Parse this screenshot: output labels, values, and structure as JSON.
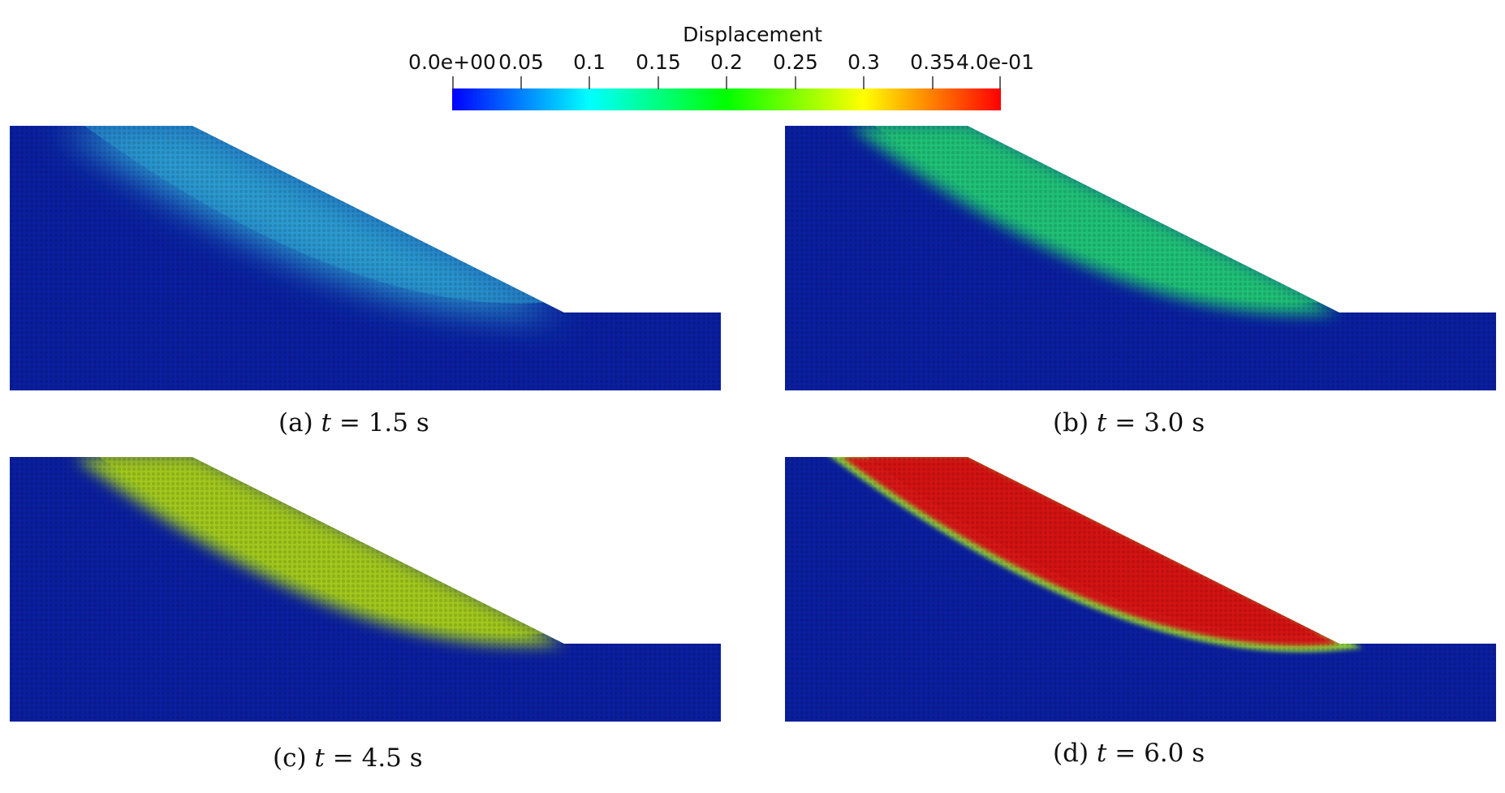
{
  "colorbar": {
    "title": "Displacement",
    "ticks": [
      "0.0e+00",
      "0.05",
      "0.1",
      "0.15",
      "0.2",
      "0.25",
      "0.3",
      "0.35",
      "4.0e-01"
    ],
    "range": [
      0.0,
      0.4
    ],
    "colormap": [
      "#0000ff",
      "#00ffff",
      "#00ff00",
      "#ffff00",
      "#ff0000"
    ]
  },
  "panels": [
    {
      "label": "(a)",
      "t_symbol": "t",
      "equals": "=",
      "time": "1.5 s",
      "slide_color": "#2a9ad0",
      "core_color": "#2b9fd2"
    },
    {
      "label": "(b)",
      "t_symbol": "t",
      "equals": "=",
      "time": "3.0 s",
      "slide_color": "#1fbf78",
      "core_color": "#22c277"
    },
    {
      "label": "(c)",
      "t_symbol": "t",
      "equals": "=",
      "time": "4.5 s",
      "slide_color": "#9dc820",
      "core_color": "#a6c81a"
    },
    {
      "label": "(d)",
      "t_symbol": "t",
      "equals": "=",
      "time": "6.0 s",
      "slide_color": "#d81414",
      "core_color": "#d41010"
    }
  ],
  "background_color": "#0a1fa0"
}
